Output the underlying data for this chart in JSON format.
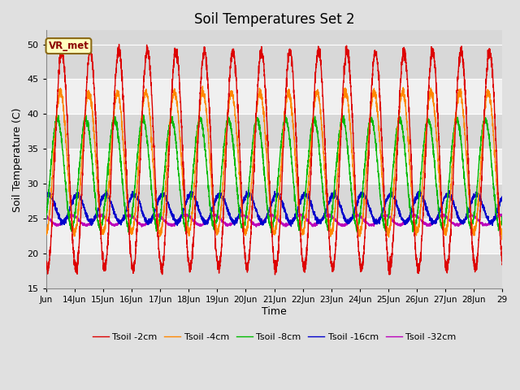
{
  "title": "Soil Temperatures Set 2",
  "xlabel": "Time",
  "ylabel": "Soil Temperature (C)",
  "ylim": [
    15,
    52
  ],
  "yticks": [
    15,
    20,
    25,
    30,
    35,
    40,
    45,
    50
  ],
  "start_day": 13.0,
  "end_day": 29.0,
  "num_points": 3840,
  "label_text": "VR_met",
  "legend_labels": [
    "Tsoil -2cm",
    "Tsoil -4cm",
    "Tsoil -8cm",
    "Tsoil -16cm",
    "Tsoil -32cm"
  ],
  "colors": [
    "#dd0000",
    "#ff8800",
    "#00bb00",
    "#0000cc",
    "#bb00bb"
  ],
  "figsize": [
    6.4,
    4.8
  ],
  "dpi": 100,
  "bg_color": "#e0e0e0",
  "band_colors": [
    "#d8d8d8",
    "#f0f0f0"
  ],
  "grid_line_color": "#ffffff",
  "xtick_labels": [
    "Jun",
    "14Jun",
    "15Jun",
    "16Jun",
    "17Jun",
    "18Jun",
    "19Jun",
    "20Jun",
    "21Jun",
    "22Jun",
    "23Jun",
    "24Jun",
    "25Jun",
    "26Jun",
    "27Jun",
    "28Jun",
    "29"
  ],
  "xtick_positions": [
    13,
    14,
    15,
    16,
    17,
    18,
    19,
    20,
    21,
    22,
    23,
    24,
    25,
    26,
    27,
    28,
    29
  ]
}
